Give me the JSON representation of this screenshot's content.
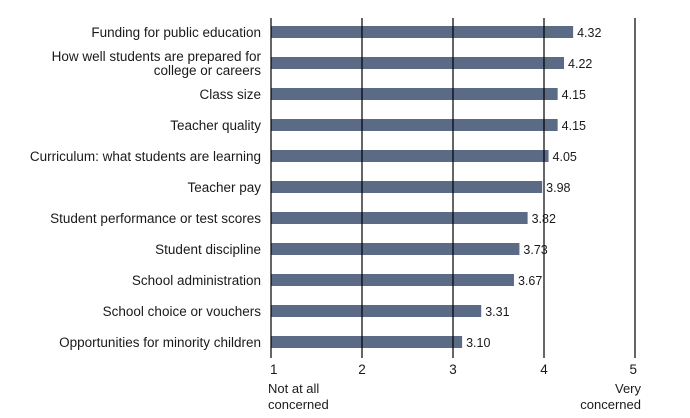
{
  "chart_data": {
    "type": "bar",
    "orientation": "horizontal",
    "categories": [
      "Funding for public education",
      "How well students are prepared for college or careers",
      "Class size",
      "Teacher quality",
      "Curriculum: what students are learning",
      "Teacher pay",
      "Student performance or test scores",
      "Student discipline",
      "School administration",
      "School choice or vouchers",
      "Opportunities for minority children"
    ],
    "category_lines": [
      [
        "Funding for public education"
      ],
      [
        "How well students are prepared for",
        "college or careers"
      ],
      [
        "Class size"
      ],
      [
        "Teacher quality"
      ],
      [
        "Curriculum: what students are learning"
      ],
      [
        "Teacher pay"
      ],
      [
        "Student performance or test scores"
      ],
      [
        "Student discipline"
      ],
      [
        "School administration"
      ],
      [
        "School choice or vouchers"
      ],
      [
        "Opportunities for minority children"
      ]
    ],
    "values": [
      4.32,
      4.22,
      4.15,
      4.15,
      4.05,
      3.98,
      3.82,
      3.73,
      3.67,
      3.31,
      3.1
    ],
    "value_labels": [
      "4.32",
      "4.22",
      "4.15",
      "4.15",
      "4.05",
      "3.98",
      "3.82",
      "3.73",
      "3.67",
      "3.31",
      "3.10"
    ],
    "xticks": [
      "1",
      "2",
      "3",
      "4",
      "5"
    ],
    "xlim": [
      1,
      5
    ],
    "x_end_labels": {
      "low": [
        "Not at all",
        "concerned"
      ],
      "high": [
        "Very",
        "concerned"
      ]
    },
    "grid": "vertical lines at 2, 3, 4, 5",
    "bar_color": "#5b6b86"
  }
}
